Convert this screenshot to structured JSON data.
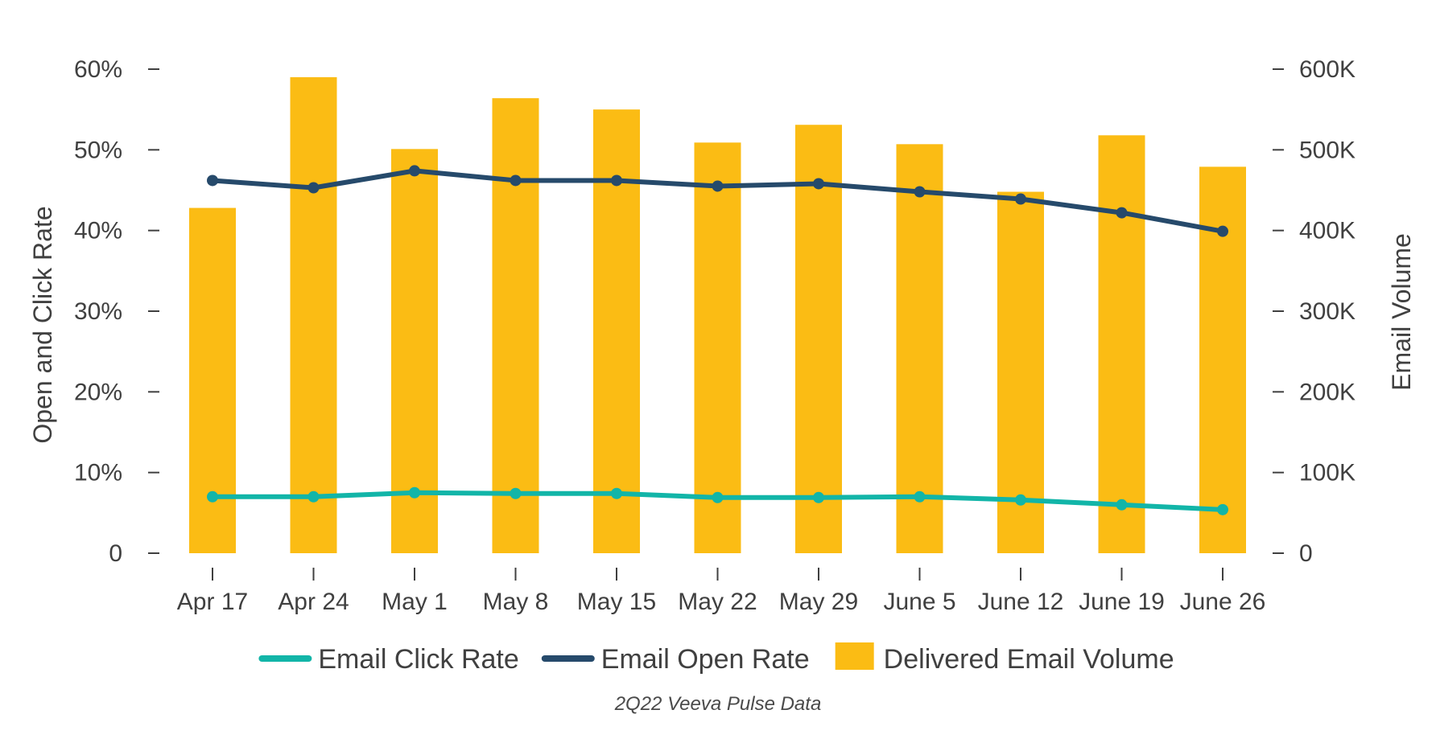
{
  "chart_data": {
    "type": "bar",
    "categories": [
      "Apr 17",
      "Apr 24",
      "May 1",
      "May 8",
      "May 15",
      "May 22",
      "May 29",
      "June 5",
      "June 12",
      "June 19",
      "June 26"
    ],
    "bar_series": {
      "name": "Delivered Email Volume",
      "axis": "right",
      "color": "#FBBC14",
      "values": [
        428000,
        590000,
        501000,
        564000,
        550000,
        509000,
        531000,
        507000,
        448000,
        518000,
        479000
      ]
    },
    "line_series": [
      {
        "name": "Email Click Rate",
        "axis": "left",
        "color": "#12B5A8",
        "values": [
          7.0,
          7.0,
          7.5,
          7.4,
          7.4,
          6.9,
          6.9,
          7.0,
          6.6,
          6.0,
          5.4
        ]
      },
      {
        "name": "Email Open Rate",
        "axis": "left",
        "color": "#264A6B",
        "values": [
          46.2,
          45.3,
          47.4,
          46.2,
          46.2,
          45.5,
          45.8,
          44.8,
          43.9,
          42.2,
          39.9
        ]
      }
    ],
    "left_axis": {
      "title": "Open and Click Rate",
      "min": 0,
      "max": 60,
      "ticks": [
        0,
        10,
        20,
        30,
        40,
        50,
        60
      ],
      "tick_labels": [
        "0",
        "10%",
        "20%",
        "30%",
        "40%",
        "50%",
        "60%"
      ]
    },
    "right_axis": {
      "title": "Email Volume",
      "min": 0,
      "max": 600000,
      "ticks": [
        0,
        100000,
        200000,
        300000,
        400000,
        500000,
        600000
      ],
      "tick_labels": [
        "0",
        "100K",
        "200K",
        "300K",
        "400K",
        "500K",
        "600K"
      ]
    },
    "legend": {
      "position": "bottom",
      "items": [
        {
          "label": "Email Click Rate",
          "kind": "line",
          "color": "#12B5A8"
        },
        {
          "label": "Email Open Rate",
          "kind": "line",
          "color": "#264A6B"
        },
        {
          "label": "Delivered Email Volume",
          "kind": "box",
          "color": "#FBBC14"
        }
      ]
    },
    "source": "2Q22 Veeva Pulse Data",
    "grid": false
  }
}
